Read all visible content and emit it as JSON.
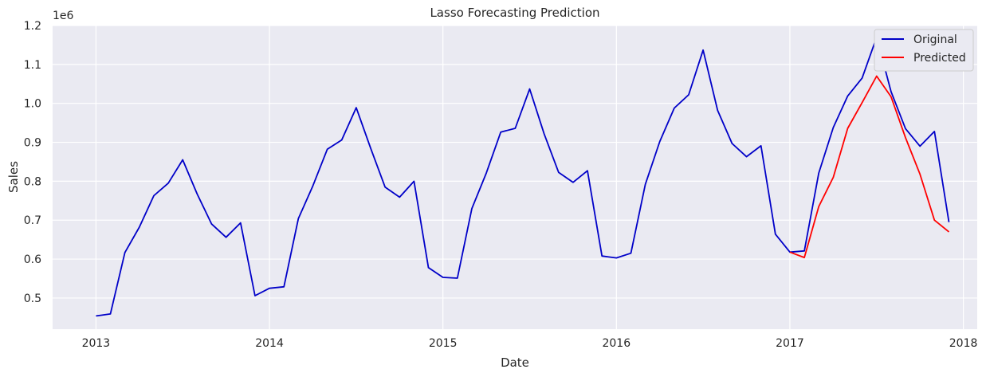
{
  "chart_data": {
    "type": "line",
    "title": "Lasso Forecasting Prediction",
    "xlabel": "Date",
    "ylabel": "Sales",
    "y_scale_label": "1e6",
    "ylim": [
      0.42,
      1.2
    ],
    "xlim": [
      2012.75,
      2018.08
    ],
    "x_ticks": [
      {
        "value": 2013,
        "label": "2013"
      },
      {
        "value": 2014,
        "label": "2014"
      },
      {
        "value": 2015,
        "label": "2015"
      },
      {
        "value": 2016,
        "label": "2016"
      },
      {
        "value": 2017,
        "label": "2017"
      },
      {
        "value": 2018,
        "label": "2018"
      }
    ],
    "y_ticks": [
      {
        "value": 0.5,
        "label": "0.5"
      },
      {
        "value": 0.6,
        "label": "0.6"
      },
      {
        "value": 0.7,
        "label": "0.7"
      },
      {
        "value": 0.8,
        "label": "0.8"
      },
      {
        "value": 0.9,
        "label": "0.9"
      },
      {
        "value": 1.0,
        "label": "1.0"
      },
      {
        "value": 1.1,
        "label": "1.1"
      },
      {
        "value": 1.2,
        "label": "1.2"
      }
    ],
    "grid": true,
    "legend_position": "top-right",
    "series": [
      {
        "name": "Original",
        "color": "#0000c8",
        "points": [
          {
            "x": "2013-01",
            "y": 0.454
          },
          {
            "x": "2013-02",
            "y": 0.459
          },
          {
            "x": "2013-03",
            "y": 0.617
          },
          {
            "x": "2013-04",
            "y": 0.682
          },
          {
            "x": "2013-05",
            "y": 0.763
          },
          {
            "x": "2013-06",
            "y": 0.795
          },
          {
            "x": "2013-07",
            "y": 0.855
          },
          {
            "x": "2013-08",
            "y": 0.767
          },
          {
            "x": "2013-09",
            "y": 0.69
          },
          {
            "x": "2013-10",
            "y": 0.656
          },
          {
            "x": "2013-11",
            "y": 0.693
          },
          {
            "x": "2013-12",
            "y": 0.506
          },
          {
            "x": "2014-01",
            "y": 0.525
          },
          {
            "x": "2014-02",
            "y": 0.529
          },
          {
            "x": "2014-03",
            "y": 0.704
          },
          {
            "x": "2014-04",
            "y": 0.788
          },
          {
            "x": "2014-05",
            "y": 0.882
          },
          {
            "x": "2014-06",
            "y": 0.906
          },
          {
            "x": "2014-07",
            "y": 0.989
          },
          {
            "x": "2014-08",
            "y": 0.885
          },
          {
            "x": "2014-09",
            "y": 0.785
          },
          {
            "x": "2014-10",
            "y": 0.759
          },
          {
            "x": "2014-11",
            "y": 0.8
          },
          {
            "x": "2014-12",
            "y": 0.578
          },
          {
            "x": "2015-01",
            "y": 0.553
          },
          {
            "x": "2015-02",
            "y": 0.551
          },
          {
            "x": "2015-03",
            "y": 0.73
          },
          {
            "x": "2015-04",
            "y": 0.821
          },
          {
            "x": "2015-05",
            "y": 0.926
          },
          {
            "x": "2015-06",
            "y": 0.936
          },
          {
            "x": "2015-07",
            "y": 1.037
          },
          {
            "x": "2015-08",
            "y": 0.922
          },
          {
            "x": "2015-09",
            "y": 0.823
          },
          {
            "x": "2015-10",
            "y": 0.797
          },
          {
            "x": "2015-11",
            "y": 0.827
          },
          {
            "x": "2015-12",
            "y": 0.608
          },
          {
            "x": "2016-01",
            "y": 0.603
          },
          {
            "x": "2016-02",
            "y": 0.615
          },
          {
            "x": "2016-03",
            "y": 0.792
          },
          {
            "x": "2016-04",
            "y": 0.902
          },
          {
            "x": "2016-05",
            "y": 0.988
          },
          {
            "x": "2016-06",
            "y": 1.022
          },
          {
            "x": "2016-07",
            "y": 1.137
          },
          {
            "x": "2016-08",
            "y": 0.982
          },
          {
            "x": "2016-09",
            "y": 0.897
          },
          {
            "x": "2016-10",
            "y": 0.863
          },
          {
            "x": "2016-11",
            "y": 0.891
          },
          {
            "x": "2016-12",
            "y": 0.664
          },
          {
            "x": "2017-01",
            "y": 0.618
          },
          {
            "x": "2017-02",
            "y": 0.621
          },
          {
            "x": "2017-03",
            "y": 0.821
          },
          {
            "x": "2017-04",
            "y": 0.938
          },
          {
            "x": "2017-05",
            "y": 1.019
          },
          {
            "x": "2017-06",
            "y": 1.065
          },
          {
            "x": "2017-07",
            "y": 1.17
          },
          {
            "x": "2017-08",
            "y": 1.03
          },
          {
            "x": "2017-09",
            "y": 0.935
          },
          {
            "x": "2017-10",
            "y": 0.89
          },
          {
            "x": "2017-11",
            "y": 0.928
          },
          {
            "x": "2017-12",
            "y": 0.695
          }
        ]
      },
      {
        "name": "Predicted",
        "color": "#ff0000",
        "points": [
          {
            "x": "2017-01",
            "y": 0.618
          },
          {
            "x": "2017-02",
            "y": 0.604
          },
          {
            "x": "2017-03",
            "y": 0.735
          },
          {
            "x": "2017-04",
            "y": 0.81
          },
          {
            "x": "2017-05",
            "y": 0.936
          },
          {
            "x": "2017-06",
            "y": 1.002
          },
          {
            "x": "2017-07",
            "y": 1.07
          },
          {
            "x": "2017-08",
            "y": 1.017
          },
          {
            "x": "2017-09",
            "y": 0.912
          },
          {
            "x": "2017-10",
            "y": 0.818
          },
          {
            "x": "2017-11",
            "y": 0.7
          },
          {
            "x": "2017-12",
            "y": 0.67
          }
        ]
      }
    ]
  }
}
